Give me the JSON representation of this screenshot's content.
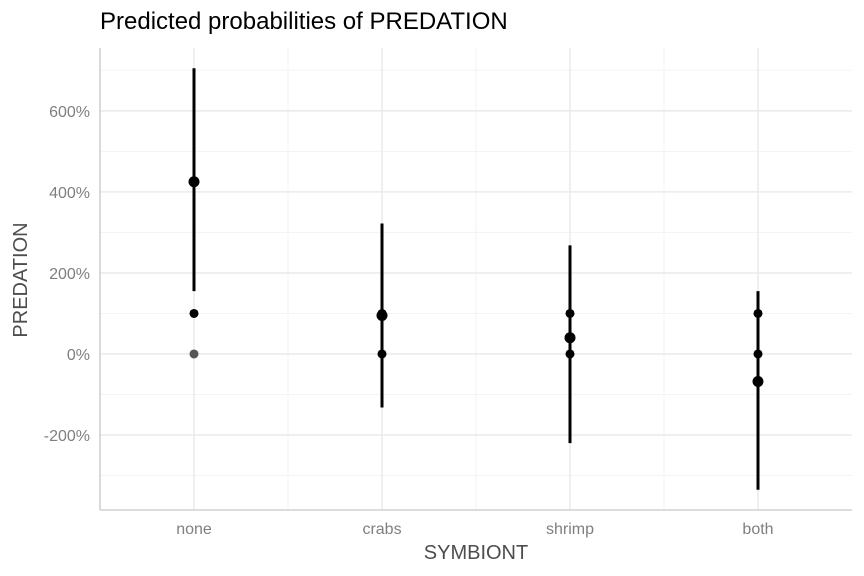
{
  "chart_data": {
    "type": "scatter",
    "title": "Predicted probabilities of PREDATION",
    "xlabel": "SYMBIONT",
    "ylabel": "PREDATION",
    "categories": [
      "none",
      "crabs",
      "shrimp",
      "both"
    ],
    "y_ticks": [
      -200,
      0,
      200,
      400,
      600
    ],
    "y_tick_labels": [
      "-200%",
      "0%",
      "200%",
      "400%",
      "600%"
    ],
    "ylim": [
      -385,
      755
    ],
    "grid": true,
    "legend": "none",
    "intervals": [
      {
        "category": "none",
        "low": 155,
        "high": 705
      },
      {
        "category": "crabs",
        "low": -132,
        "high": 322
      },
      {
        "category": "shrimp",
        "low": -220,
        "high": 268
      },
      {
        "category": "both",
        "low": -335,
        "high": 155
      }
    ],
    "points": [
      {
        "category": "none",
        "y": 425,
        "size": "large",
        "color": "#000000"
      },
      {
        "category": "none",
        "y": 100,
        "size": "small",
        "color": "#000000"
      },
      {
        "category": "none",
        "y": 0,
        "size": "small",
        "color": "#555555"
      },
      {
        "category": "crabs",
        "y": 100,
        "size": "small",
        "color": "#000000"
      },
      {
        "category": "crabs",
        "y": 95,
        "size": "large",
        "color": "#000000"
      },
      {
        "category": "crabs",
        "y": 0,
        "size": "small",
        "color": "#000000"
      },
      {
        "category": "shrimp",
        "y": 100,
        "size": "small",
        "color": "#000000"
      },
      {
        "category": "shrimp",
        "y": 40,
        "size": "large",
        "color": "#000000"
      },
      {
        "category": "shrimp",
        "y": 0,
        "size": "small",
        "color": "#000000"
      },
      {
        "category": "both",
        "y": 100,
        "size": "small",
        "color": "#000000"
      },
      {
        "category": "both",
        "y": 0,
        "size": "small",
        "color": "#000000"
      },
      {
        "category": "both",
        "y": -68,
        "size": "large",
        "color": "#000000"
      }
    ]
  }
}
